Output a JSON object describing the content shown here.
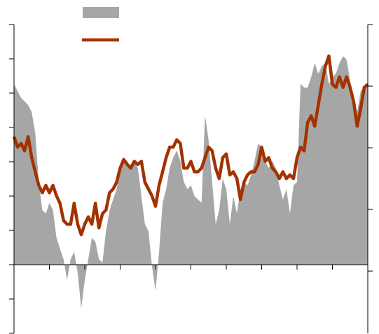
{
  "chart_data": {
    "type": "line",
    "legend": "top",
    "x": [
      0,
      0.1,
      0.2,
      0.3,
      0.4,
      0.5,
      0.6,
      0.7,
      0.8,
      0.9,
      1,
      1.1,
      1.2,
      1.3,
      1.4,
      1.5,
      1.6,
      1.7,
      1.8,
      1.9,
      2,
      2.1,
      2.2,
      2.3,
      2.4,
      2.5,
      2.6,
      2.7,
      2.8,
      2.9,
      3,
      3.1,
      3.2,
      3.3,
      3.4,
      3.5,
      3.6,
      3.7,
      3.8,
      3.9,
      4,
      4.1,
      4.2,
      4.3,
      4.4,
      4.5,
      4.6,
      4.7,
      4.8,
      4.9,
      5,
      5.1,
      5.2,
      5.3,
      5.4,
      5.5,
      5.6,
      5.7,
      5.8,
      5.9,
      6,
      6.1,
      6.2,
      6.3,
      6.4,
      6.5,
      6.6,
      6.7,
      6.8,
      6.9,
      7,
      7.1,
      7.2,
      7.3,
      7.4,
      7.5,
      7.6,
      7.7,
      7.8,
      7.9,
      8,
      8.1,
      8.2,
      8.3,
      8.4,
      8.5,
      8.6,
      8.7,
      8.8,
      8.9,
      9,
      9.1,
      9.2,
      9.3,
      9.4,
      9.5,
      9.6,
      9.7,
      9.8,
      9.9,
      10
    ],
    "xlim": [
      0,
      10
    ],
    "xticks": [
      1,
      2,
      3,
      4,
      5,
      6,
      7,
      8,
      9
    ],
    "ylim": [
      -2,
      7
    ],
    "yticks": [
      -2,
      -1,
      0,
      1,
      2,
      3,
      4,
      5,
      6,
      7
    ],
    "y2lim": [
      -1.01,
      4
    ],
    "y2ticks": [
      0,
      1,
      2,
      3,
      4
    ],
    "series": [
      {
        "type": "area",
        "color": "#a6a6a6",
        "values": [
          5.27,
          5.06,
          4.86,
          4.76,
          4.65,
          4.45,
          3.84,
          2.41,
          1.59,
          1.49,
          1.8,
          1.59,
          0.78,
          0.47,
          0.16,
          -0.45,
          0.16,
          0.37,
          -0.24,
          -1.27,
          -0.45,
          0.16,
          0.78,
          0.67,
          0.16,
          0.06,
          0.98,
          1.59,
          1.9,
          2.2,
          2.82,
          3.12,
          3.02,
          2.82,
          3.02,
          2.82,
          2.0,
          1.18,
          0.98,
          -0.04,
          -0.76,
          0.37,
          1.8,
          2.2,
          2.82,
          3.12,
          3.33,
          3.02,
          2.41,
          2.2,
          2.31,
          2.0,
          1.9,
          1.8,
          4.35,
          3.63,
          2.41,
          1.18,
          1.59,
          2.51,
          2.2,
          1.18,
          2.0,
          1.49,
          2.2,
          2.41,
          2.31,
          2.61,
          3.02,
          3.53,
          3.43,
          3.02,
          2.82,
          3.02,
          2.82,
          2.31,
          1.9,
          2.2,
          1.49,
          2.31,
          2.41,
          5.27,
          5.16,
          5.16,
          5.47,
          5.88,
          5.57,
          5.78,
          5.88,
          5.27,
          5.47,
          5.57,
          5.88,
          6.08,
          5.98,
          5.37,
          4.86,
          4.45,
          5.06,
          5.16,
          5.27
        ]
      },
      {
        "type": "line",
        "axis": "y2",
        "color": "#a33200",
        "values": [
          2.18,
          2.01,
          2.07,
          1.95,
          2.18,
          1.84,
          1.61,
          1.39,
          1.27,
          1.39,
          1.27,
          1.39,
          1.22,
          1.1,
          0.82,
          0.76,
          0.76,
          1.1,
          0.76,
          0.59,
          0.76,
          0.88,
          0.76,
          1.1,
          0.7,
          0.93,
          0.99,
          1.27,
          1.33,
          1.44,
          1.67,
          1.81,
          1.73,
          1.67,
          1.78,
          1.73,
          1.78,
          1.44,
          1.33,
          1.22,
          1.05,
          1.39,
          1.61,
          1.84,
          2.01,
          2.01,
          2.13,
          2.07,
          1.67,
          1.67,
          1.78,
          1.61,
          1.61,
          1.67,
          1.84,
          2.01,
          1.95,
          1.67,
          1.5,
          1.84,
          1.9,
          1.56,
          1.61,
          1.5,
          1.16,
          1.44,
          1.56,
          1.61,
          1.61,
          1.73,
          2.01,
          1.78,
          1.84,
          1.67,
          1.61,
          1.5,
          1.61,
          1.5,
          1.56,
          1.5,
          1.84,
          2.01,
          1.95,
          2.41,
          2.52,
          2.35,
          2.69,
          3.03,
          3.32,
          3.49,
          3.03,
          2.98,
          3.15,
          2.98,
          3.15,
          2.98,
          2.75,
          2.35,
          2.64,
          2.98,
          3.03
        ]
      }
    ]
  }
}
